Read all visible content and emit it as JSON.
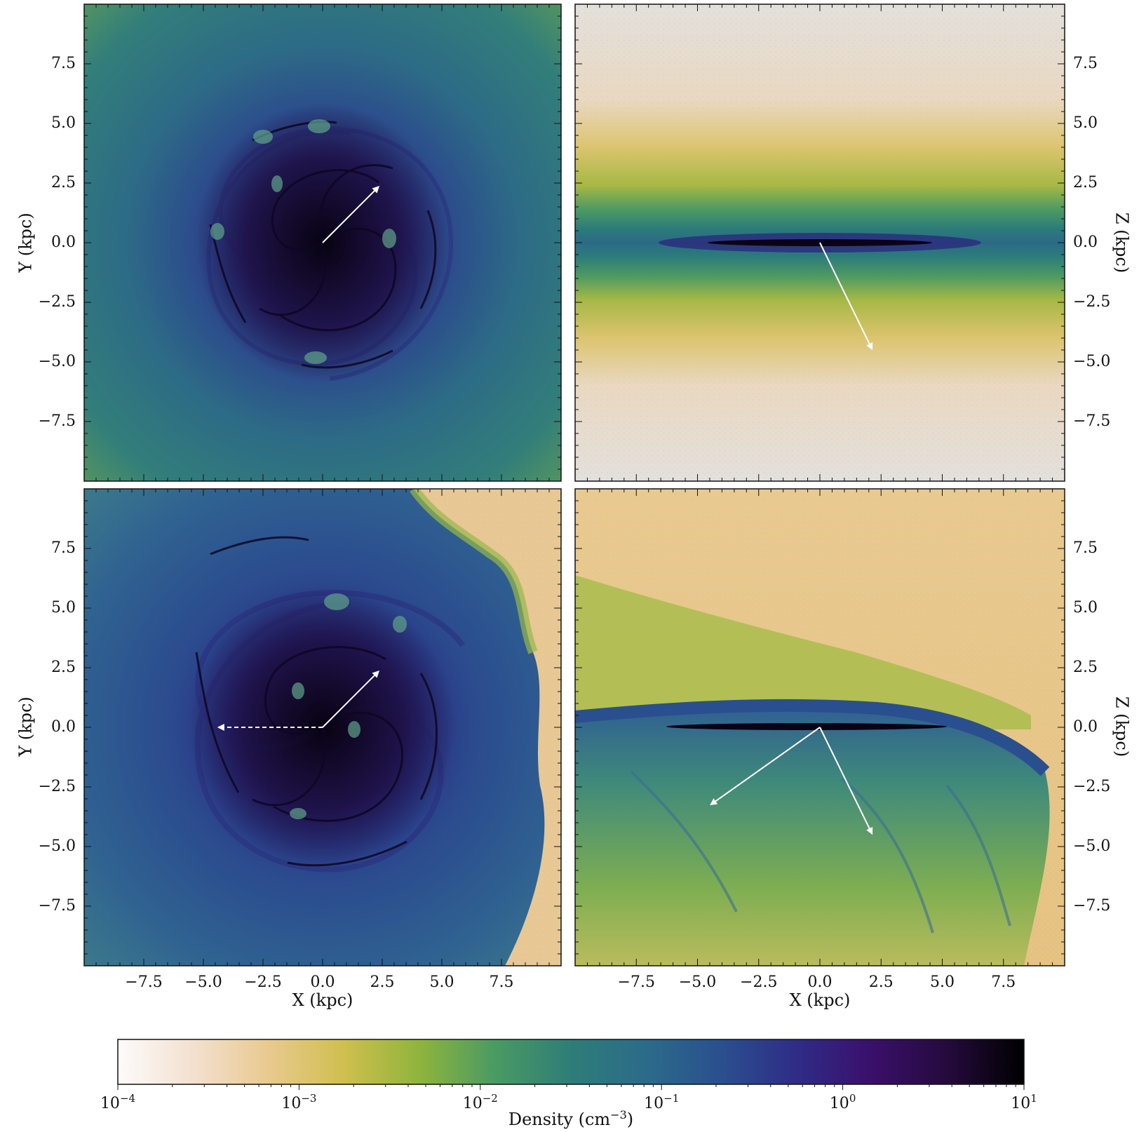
{
  "chart_data": {
    "type": "heatmap",
    "panels": [
      {
        "id": "top-left",
        "view": "face-on",
        "xlabel": "",
        "ylabel": "Y (kpc)",
        "ylabel_side": "left",
        "xlim": [
          -10,
          10
        ],
        "ylim": [
          -10,
          10
        ],
        "x_ticks": [],
        "y_ticks": [
          "−7.5",
          "−5.0",
          "−2.5",
          "0.0",
          "2.5",
          "5.0",
          "7.5"
        ],
        "y_tick_values": [
          -7.5,
          -5.0,
          -2.5,
          0.0,
          2.5,
          5.0,
          7.5
        ],
        "arrows": [
          {
            "from": [
              0,
              0
            ],
            "to": [
              2.3,
              2.3
            ],
            "style": "solid"
          }
        ],
        "background": "#2e7b7a"
      },
      {
        "id": "top-right",
        "view": "edge-on",
        "xlabel": "",
        "ylabel": "Z (kpc)",
        "ylabel_side": "right",
        "xlim": [
          -10,
          10
        ],
        "ylim": [
          -10,
          10
        ],
        "x_ticks": [],
        "y_ticks": [
          "7.5",
          "5.0",
          "2.5",
          "0.0",
          "−2.5",
          "−5.0",
          "−7.5"
        ],
        "y_tick_values": [
          7.5,
          5.0,
          2.5,
          0.0,
          -2.5,
          -5.0,
          -7.5
        ],
        "arrows": [
          {
            "from": [
              0,
              0
            ],
            "to": [
              2.1,
              -4.4
            ],
            "style": "solid"
          }
        ],
        "background": "#e8e2d8"
      },
      {
        "id": "bottom-left",
        "view": "face-on",
        "xlabel": "X (kpc)",
        "ylabel": "Y (kpc)",
        "ylabel_side": "left",
        "xlim": [
          -10,
          10
        ],
        "ylim": [
          -10,
          10
        ],
        "x_ticks": [
          "−7.5",
          "−5.0",
          "−2.5",
          "0.0",
          "2.5",
          "5.0",
          "7.5"
        ],
        "x_tick_values": [
          -7.5,
          -5.0,
          -2.5,
          0.0,
          2.5,
          5.0,
          7.5
        ],
        "y_ticks": [
          "−7.5",
          "−5.0",
          "−2.5",
          "0.0",
          "2.5",
          "5.0",
          "7.5"
        ],
        "y_tick_values": [
          -7.5,
          -5.0,
          -2.5,
          0.0,
          2.5,
          5.0,
          7.5
        ],
        "arrows": [
          {
            "from": [
              0,
              0
            ],
            "to": [
              2.3,
              2.3
            ],
            "style": "solid"
          },
          {
            "from": [
              0,
              0
            ],
            "to": [
              -4.3,
              0
            ],
            "style": "dashed"
          }
        ],
        "background": "#2c5c8f"
      },
      {
        "id": "bottom-right",
        "view": "edge-on",
        "xlabel": "X (kpc)",
        "ylabel": "Z (kpc)",
        "ylabel_side": "right",
        "xlim": [
          -10,
          10
        ],
        "ylim": [
          -10,
          10
        ],
        "x_ticks": [
          "−7.5",
          "−5.0",
          "−2.5",
          "0.0",
          "2.5",
          "5.0",
          "7.5"
        ],
        "x_tick_values": [
          -7.5,
          -5.0,
          -2.5,
          0.0,
          2.5,
          5.0,
          7.5
        ],
        "y_ticks": [
          "7.5",
          "5.0",
          "2.5",
          "0.0",
          "−2.5",
          "−5.0",
          "−7.5"
        ],
        "y_tick_values": [
          7.5,
          5.0,
          2.5,
          0.0,
          -2.5,
          -5.0,
          -7.5
        ],
        "arrows": [
          {
            "from": [
              0,
              0
            ],
            "to": [
              -4.4,
              -3.2
            ],
            "style": "solid"
          },
          {
            "from": [
              0,
              0
            ],
            "to": [
              2.1,
              -4.4
            ],
            "style": "solid"
          }
        ],
        "background": "#e8c991"
      }
    ],
    "colorbar": {
      "label_main": "Density (cm",
      "label_exp": "−3",
      "label_close": ")",
      "scale": "log",
      "range": [
        0.0001,
        10
      ],
      "ticks": [
        {
          "base": "10",
          "exp": "−4",
          "value": 0.0001
        },
        {
          "base": "10",
          "exp": "−3",
          "value": 0.001
        },
        {
          "base": "10",
          "exp": "−2",
          "value": 0.01
        },
        {
          "base": "10",
          "exp": "−1",
          "value": 0.1
        },
        {
          "base": "10",
          "exp": "0",
          "value": 1
        },
        {
          "base": "10",
          "exp": "1",
          "value": 10
        }
      ],
      "colors": [
        "#fdfbfa",
        "#f3e0d0",
        "#e9c98f",
        "#cfbf4e",
        "#8fb43c",
        "#4a9a63",
        "#2e7d78",
        "#2b6b8a",
        "#2a4f8e",
        "#2f2c86",
        "#3a0f6a",
        "#240a3c",
        "#000000"
      ]
    }
  }
}
